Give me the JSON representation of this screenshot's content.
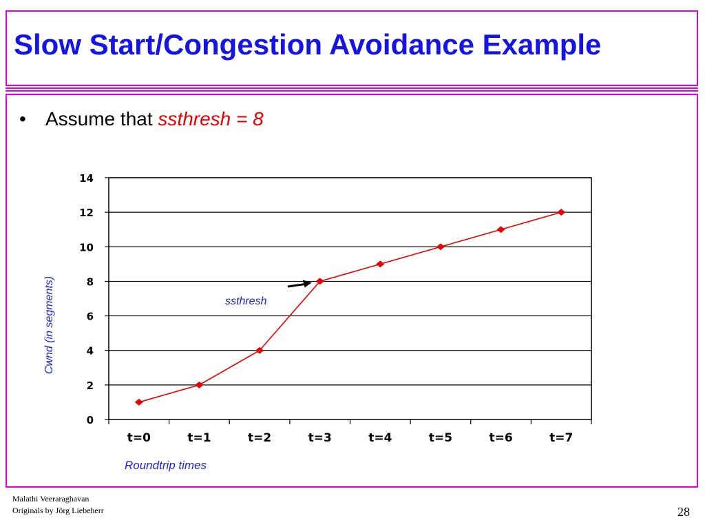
{
  "slide": {
    "title": "Slow Start/Congestion Avoidance Example",
    "bullet_prefix": "Assume that",
    "bullet_highlight": "ssthresh = 8",
    "footer_author": "Malathi Veeraraghavan",
    "footer_credit": "Originals by Jörg Liebeherr",
    "page_number": "28",
    "colors": {
      "title": "#1414e6",
      "frame": "#e100e1",
      "highlight": "#e60000",
      "series": "#e60000",
      "label": "#1e1ee6"
    }
  },
  "chart_data": {
    "type": "line",
    "categories": [
      "t=0",
      "t=1",
      "t=2",
      "t=3",
      "t=4",
      "t=5",
      "t=6",
      "t=7"
    ],
    "series": [
      {
        "values": [
          1,
          2,
          4,
          8,
          9,
          10,
          11,
          12
        ]
      }
    ],
    "xlabel": "Roundtrip times",
    "ylabel": "Cwnd (in segments)",
    "ylim": [
      0,
      14
    ],
    "yticks": [
      0,
      2,
      4,
      6,
      8,
      10,
      12,
      14
    ],
    "grid": "horizontal",
    "annotation": {
      "text": "ssthresh",
      "points_to": "t=3"
    }
  }
}
